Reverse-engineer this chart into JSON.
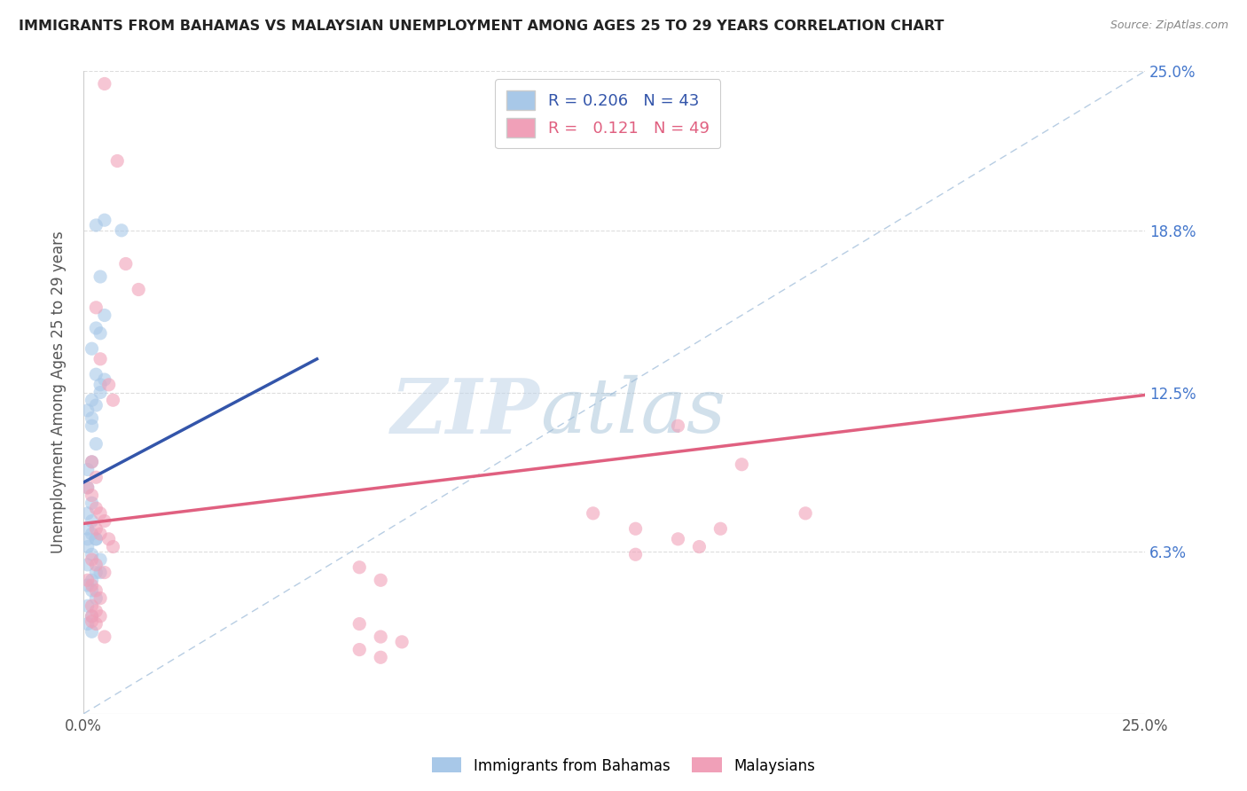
{
  "title": "IMMIGRANTS FROM BAHAMAS VS MALAYSIAN UNEMPLOYMENT AMONG AGES 25 TO 29 YEARS CORRELATION CHART",
  "source": "Source: ZipAtlas.com",
  "ylabel": "Unemployment Among Ages 25 to 29 years",
  "xlim": [
    0.0,
    0.25
  ],
  "ylim": [
    0.0,
    0.25
  ],
  "xtick_labels": [
    "0.0%",
    "25.0%"
  ],
  "ytick_labels": [
    "6.3%",
    "12.5%",
    "18.8%",
    "25.0%"
  ],
  "ytick_positions": [
    0.063,
    0.125,
    0.188,
    0.25
  ],
  "blue_scatter_x": [
    0.003,
    0.005,
    0.009,
    0.004,
    0.005,
    0.003,
    0.004,
    0.002,
    0.003,
    0.004,
    0.002,
    0.001,
    0.002,
    0.003,
    0.004,
    0.002,
    0.001,
    0.002,
    0.001,
    0.003,
    0.002,
    0.001,
    0.002,
    0.001,
    0.001,
    0.001,
    0.002,
    0.003,
    0.005,
    0.002,
    0.001,
    0.004,
    0.003,
    0.002,
    0.001,
    0.002,
    0.003,
    0.004,
    0.001,
    0.002,
    0.001,
    0.003,
    0.002
  ],
  "blue_scatter_y": [
    0.19,
    0.192,
    0.188,
    0.17,
    0.155,
    0.15,
    0.148,
    0.142,
    0.132,
    0.128,
    0.122,
    0.118,
    0.115,
    0.12,
    0.125,
    0.112,
    0.095,
    0.098,
    0.088,
    0.105,
    0.082,
    0.078,
    0.075,
    0.072,
    0.068,
    0.065,
    0.07,
    0.068,
    0.13,
    0.062,
    0.058,
    0.06,
    0.055,
    0.052,
    0.05,
    0.048,
    0.045,
    0.055,
    0.042,
    0.038,
    0.035,
    0.068,
    0.032
  ],
  "pink_scatter_x": [
    0.005,
    0.008,
    0.01,
    0.013,
    0.003,
    0.004,
    0.006,
    0.007,
    0.002,
    0.003,
    0.001,
    0.002,
    0.004,
    0.005,
    0.003,
    0.004,
    0.006,
    0.007,
    0.002,
    0.003,
    0.005,
    0.001,
    0.002,
    0.003,
    0.004,
    0.002,
    0.003,
    0.004,
    0.002,
    0.003,
    0.14,
    0.155,
    0.17,
    0.15,
    0.14,
    0.13,
    0.002,
    0.003,
    0.005,
    0.12,
    0.13,
    0.145,
    0.065,
    0.07,
    0.065,
    0.07,
    0.075,
    0.065,
    0.07
  ],
  "pink_scatter_y": [
    0.245,
    0.215,
    0.175,
    0.165,
    0.158,
    0.138,
    0.128,
    0.122,
    0.098,
    0.092,
    0.088,
    0.085,
    0.078,
    0.075,
    0.072,
    0.07,
    0.068,
    0.065,
    0.06,
    0.058,
    0.055,
    0.052,
    0.05,
    0.048,
    0.045,
    0.042,
    0.04,
    0.038,
    0.036,
    0.08,
    0.112,
    0.097,
    0.078,
    0.072,
    0.068,
    0.062,
    0.038,
    0.035,
    0.03,
    0.078,
    0.072,
    0.065,
    0.057,
    0.052,
    0.035,
    0.03,
    0.028,
    0.025,
    0.022
  ],
  "blue_line_x": [
    0.0,
    0.055
  ],
  "blue_line_y": [
    0.09,
    0.138
  ],
  "pink_line_x": [
    0.0,
    0.25
  ],
  "pink_line_y": [
    0.074,
    0.124
  ],
  "diag_line_x": [
    0.0,
    0.25
  ],
  "diag_line_y": [
    0.0,
    0.25
  ],
  "blue_color": "#a8c8e8",
  "pink_color": "#f0a0b8",
  "blue_line_color": "#3355aa",
  "pink_line_color": "#e06080",
  "diag_line_color": "#b0c8e0",
  "watermark_zip": "ZIP",
  "watermark_atlas": "atlas",
  "background_color": "#ffffff",
  "grid_color": "#dddddd",
  "legend_r1": "R = 0.206   N = 43",
  "legend_r2": "R =   0.121   N = 49",
  "legend_label1": "Immigrants from Bahamas",
  "legend_label2": "Malaysians"
}
